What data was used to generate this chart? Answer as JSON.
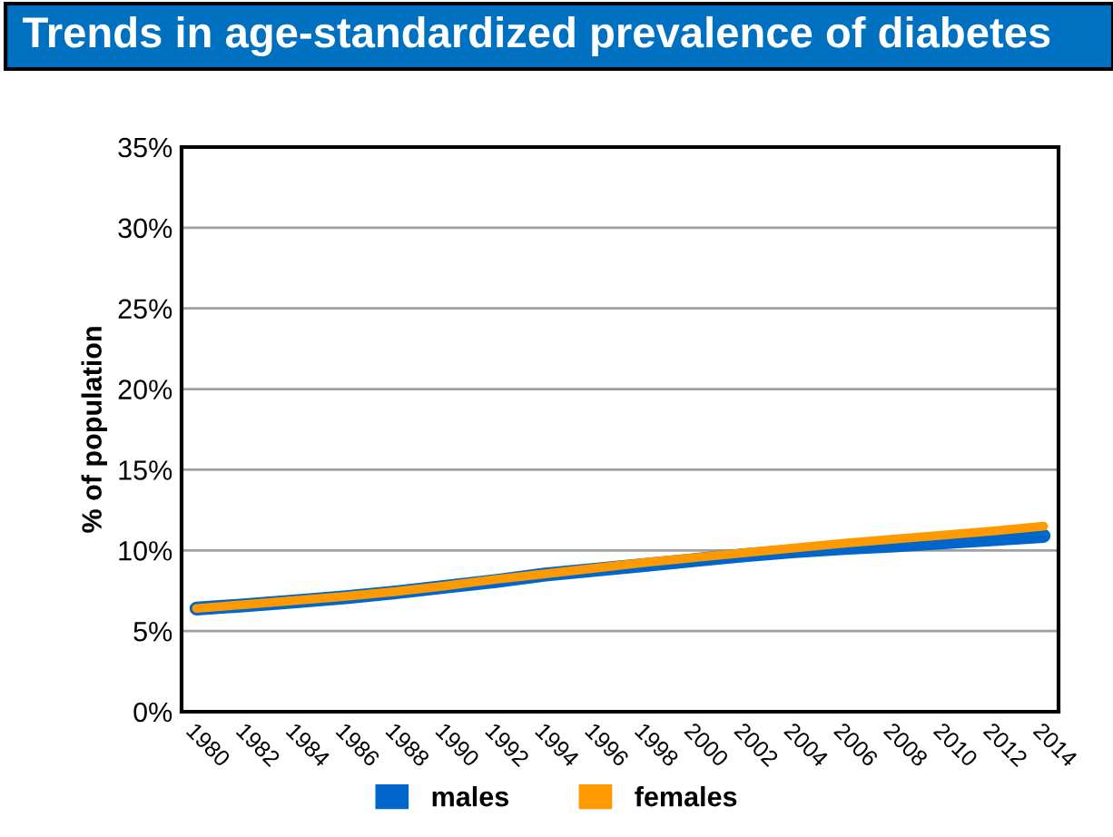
{
  "chart_data": {
    "type": "line",
    "title": "Trends in age-standardized prevalence of diabetes",
    "ylabel": "% of population",
    "categories": [
      "1980",
      "1982",
      "1984",
      "1986",
      "1988",
      "1990",
      "1992",
      "1994",
      "1996",
      "1998",
      "2000",
      "2002",
      "2004",
      "2006",
      "2008",
      "2010",
      "2012",
      "2014"
    ],
    "series": [
      {
        "name": "males",
        "color": "#0066cc",
        "values": [
          6.4,
          6.6,
          6.85,
          7.1,
          7.4,
          7.75,
          8.1,
          8.5,
          8.8,
          9.1,
          9.4,
          9.7,
          9.95,
          10.15,
          10.3,
          10.5,
          10.7,
          10.9
        ]
      },
      {
        "name": "females",
        "color": "#ff9900",
        "values": [
          6.4,
          6.65,
          6.9,
          7.15,
          7.45,
          7.8,
          8.2,
          8.55,
          8.9,
          9.25,
          9.55,
          9.85,
          10.15,
          10.45,
          10.7,
          10.95,
          11.2,
          11.5
        ]
      }
    ],
    "ylim": [
      0,
      35
    ],
    "yticks": [
      {
        "value": 0,
        "label": "0%"
      },
      {
        "value": 5,
        "label": "5%"
      },
      {
        "value": 10,
        "label": "10%"
      },
      {
        "value": 15,
        "label": "15%"
      },
      {
        "value": 20,
        "label": "20%"
      },
      {
        "value": 25,
        "label": "25%"
      },
      {
        "value": 30,
        "label": "30%"
      },
      {
        "value": 35,
        "label": "35%"
      }
    ],
    "grid": "y",
    "legend": "bottom",
    "marker": "none",
    "line_style": "solid"
  }
}
